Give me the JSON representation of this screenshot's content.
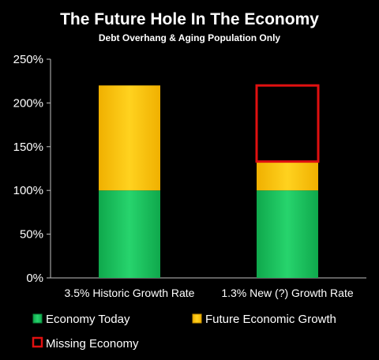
{
  "colors": {
    "background": "#000000",
    "economy_today": "#13c15a",
    "economy_today_highlight": "#4be08a",
    "future_growth": "#ffc000",
    "future_growth_highlight": "#ffe066",
    "missing_economy": "#e01010",
    "axis": "#bfbfbf",
    "text": "#ffffff"
  },
  "chart_data": {
    "type": "bar",
    "stacked": true,
    "title": "The Future Hole In The Economy",
    "subtitle": "Debt Overhang & Aging Population Only",
    "categories": [
      "3.5% Historic Growth Rate",
      "1.3% New (?) Growth Rate"
    ],
    "series": [
      {
        "name": "Economy Today",
        "values": [
          100,
          100
        ],
        "color": "#13c15a"
      },
      {
        "name": "Future Economic Growth",
        "values": [
          120,
          33
        ],
        "color": "#ffc000"
      },
      {
        "name": "Missing Economy",
        "values": [
          0,
          87
        ],
        "color": "#e01010",
        "style": "outline"
      }
    ],
    "ylim": [
      0,
      250
    ],
    "yticks": [
      0,
      50,
      100,
      150,
      200,
      250
    ],
    "ytick_labels": [
      "0%",
      "50%",
      "100%",
      "150%",
      "200%",
      "250%"
    ],
    "xlabel": "",
    "ylabel": "",
    "grid": false,
    "legend_position": "bottom"
  }
}
